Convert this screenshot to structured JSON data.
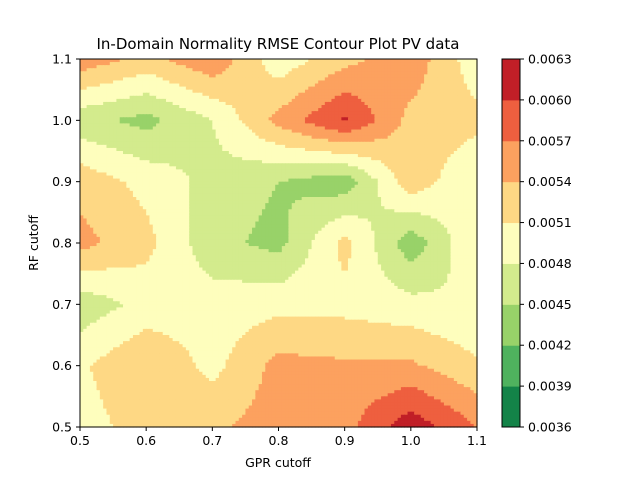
{
  "chart_data": {
    "type": "contour",
    "title": "In-Domain Normality RMSE Contour Plot PV data",
    "xlabel": "GPR cutoff",
    "ylabel": "RF cutoff",
    "xlim": [
      0.5,
      1.1
    ],
    "ylim": [
      0.5,
      1.1
    ],
    "x": [
      0.5,
      0.6,
      0.7,
      0.8,
      0.9,
      1.0,
      1.1
    ],
    "y": [
      0.5,
      0.6,
      0.7,
      0.8,
      0.9,
      1.0,
      1.1
    ],
    "z": [
      [
        0.00495,
        0.00525,
        0.00535,
        0.00555,
        0.0056,
        0.0062,
        0.0057
      ],
      [
        0.00505,
        0.0054,
        0.005,
        0.0055,
        0.00545,
        0.00545,
        0.00515
      ],
      [
        0.0046,
        0.0049,
        0.00495,
        0.005,
        0.005,
        0.0049,
        0.0048
      ],
      [
        0.0055,
        0.0052,
        0.0046,
        0.0044,
        0.0052,
        0.0043,
        0.0051
      ],
      [
        0.0053,
        0.005,
        0.0047,
        0.0045,
        0.0043,
        0.0053,
        0.0048
      ],
      [
        0.0046,
        0.0044,
        0.0048,
        0.0055,
        0.00605,
        0.0053,
        0.0052
      ],
      [
        0.0056,
        0.0053,
        0.00565,
        0.0049,
        0.0053,
        0.0056,
        0.0049
      ]
    ],
    "levels": [
      0.0036,
      0.0039,
      0.0042,
      0.0045,
      0.0048,
      0.0051,
      0.0054,
      0.0057,
      0.006,
      0.0063
    ],
    "x_ticks": [
      "0.5",
      "0.6",
      "0.7",
      "0.8",
      "0.9",
      "1.0",
      "1.1"
    ],
    "y_ticks": [
      "0.5",
      "0.6",
      "0.7",
      "0.8",
      "0.9",
      "1.0",
      "1.1"
    ],
    "colorbar_ticks": [
      "0.0036",
      "0.0039",
      "0.0042",
      "0.0045",
      "0.0048",
      "0.0051",
      "0.0054",
      "0.0057",
      "0.0060",
      "0.0063"
    ],
    "colormap": "RdYlGn_r",
    "band_colors": [
      "#138348",
      "#4fb25e",
      "#98d269",
      "#d3eb8d",
      "#fefebd",
      "#fed884",
      "#fca15f",
      "#ee5f3f",
      "#c11f27"
    ],
    "grid": false,
    "legend": "colorbar-right"
  }
}
